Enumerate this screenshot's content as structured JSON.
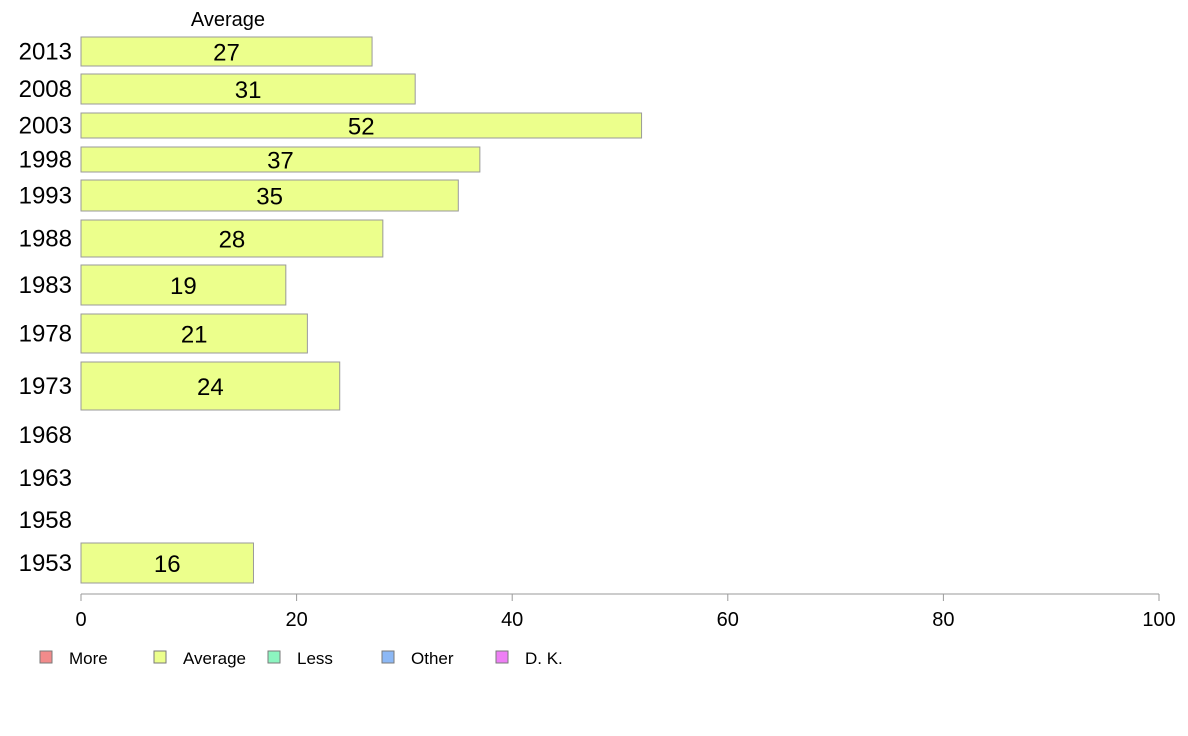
{
  "chart_data": {
    "type": "bar",
    "orientation": "horizontal",
    "series_title": "Average",
    "categories": [
      "2013",
      "2008",
      "2003",
      "1998",
      "1993",
      "1988",
      "1983",
      "1978",
      "1973",
      "1968",
      "1963",
      "1958",
      "1953"
    ],
    "series": [
      {
        "name": "Average",
        "values": [
          27,
          31,
          52,
          37,
          35,
          28,
          19,
          21,
          24,
          null,
          null,
          null,
          16
        ]
      }
    ],
    "xlim": [
      0,
      100
    ],
    "xticks": [
      0,
      20,
      40,
      60,
      80,
      100
    ],
    "grid": false,
    "legend_position": "bottom-left",
    "legend": [
      {
        "label": "More",
        "color": "#f28b8b"
      },
      {
        "label": "Average",
        "color": "#ecff8c"
      },
      {
        "label": "Less",
        "color": "#8cf5c0"
      },
      {
        "label": "Other",
        "color": "#8cb8f5"
      },
      {
        "label": "D. K.",
        "color": "#ee7ff5"
      }
    ],
    "bar_color": "#ecff8c"
  }
}
